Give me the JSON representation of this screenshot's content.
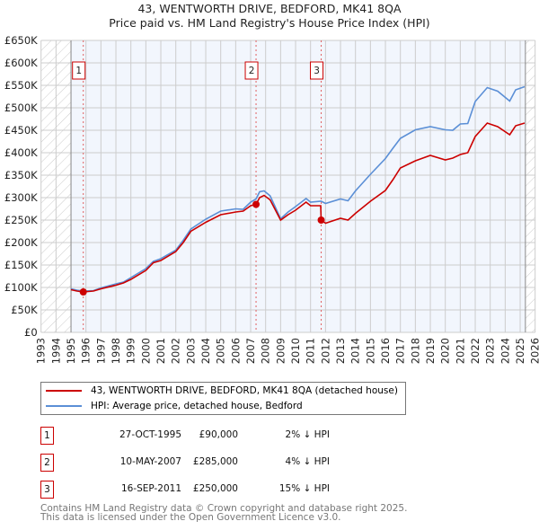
{
  "title": "43, WENTWORTH DRIVE, BEDFORD, MK41 8QA",
  "subtitle": "Price paid vs. HM Land Registry's House Price Index (HPI)",
  "chart_data": {
    "type": "line",
    "ylim": [
      0,
      650000
    ],
    "xlim": [
      1993,
      2026
    ],
    "yticks": [
      "£0",
      "£50K",
      "£100K",
      "£150K",
      "£200K",
      "£250K",
      "£300K",
      "£350K",
      "£400K",
      "£450K",
      "£500K",
      "£550K",
      "£600K",
      "£650K"
    ],
    "xticks": [
      "1993",
      "1994",
      "1995",
      "1996",
      "1997",
      "1998",
      "1999",
      "2000",
      "2001",
      "2002",
      "2003",
      "2004",
      "2005",
      "2006",
      "2007",
      "2008",
      "2009",
      "2010",
      "2011",
      "2012",
      "2013",
      "2014",
      "2015",
      "2016",
      "2017",
      "2018",
      "2019",
      "2020",
      "2021",
      "2022",
      "2023",
      "2024",
      "2025",
      "2026"
    ],
    "hatched_before": 1995.0,
    "hatched_after": 2025.35,
    "series": [
      {
        "name": "43, WENTWORTH DRIVE, BEDFORD, MK41 8QA (detached house)",
        "color": "#cc0000",
        "x": [
          1995.0,
          1995.4,
          1995.82,
          1996.5,
          1997,
          1998,
          1998.5,
          1999,
          2000,
          2000.5,
          2001,
          2002,
          2002.5,
          2003,
          2004,
          2005,
          2006,
          2006.5,
          2007,
          2007.36,
          2007.6,
          2007.9,
          2008.3,
          2009,
          2009.5,
          2010,
          2010.7,
          2011,
          2011.68,
          2011.71,
          2012,
          2013,
          2013.5,
          2014,
          2015,
          2016,
          2016.5,
          2017,
          2018,
          2019,
          2020,
          2020.5,
          2021,
          2021.5,
          2022,
          2022.8,
          2023.5,
          2024.3,
          2024.7,
          2025.3
        ],
        "y": [
          95000,
          92000,
          90000,
          92000,
          97000,
          105000,
          110000,
          118000,
          138000,
          155000,
          160000,
          180000,
          200000,
          225000,
          245000,
          262000,
          268000,
          270000,
          282000,
          285000,
          300000,
          305000,
          295000,
          250000,
          262000,
          272000,
          290000,
          282000,
          282000,
          250000,
          243000,
          254000,
          250000,
          265000,
          292000,
          316000,
          340000,
          366000,
          382000,
          394000,
          384000,
          388000,
          396000,
          400000,
          436000,
          466000,
          458000,
          440000,
          460000,
          466000
        ]
      },
      {
        "name": "HPI: Average price, detached house, Bedford",
        "color": "#5b8fd6",
        "x": [
          1995.0,
          1995.4,
          1995.82,
          1996.5,
          1997,
          1998,
          1998.5,
          1999,
          2000,
          2000.5,
          2001,
          2002,
          2002.5,
          2003,
          2004,
          2005,
          2006,
          2006.5,
          2007,
          2007.36,
          2007.6,
          2007.9,
          2008.3,
          2009,
          2009.5,
          2010,
          2010.7,
          2011,
          2011.7,
          2012,
          2013,
          2013.5,
          2014,
          2015,
          2016,
          2016.5,
          2017,
          2018,
          2019,
          2020,
          2020.5,
          2021,
          2021.5,
          2022,
          2022.8,
          2023.5,
          2024.3,
          2024.7,
          2025.3
        ],
        "y": [
          97000,
          94000,
          92000,
          93000,
          99000,
          108000,
          112000,
          122000,
          142000,
          158000,
          164000,
          183000,
          205000,
          230000,
          252000,
          270000,
          275000,
          274000,
          290000,
          297000,
          313000,
          315000,
          304000,
          253000,
          268000,
          280000,
          298000,
          290000,
          292000,
          287000,
          297000,
          293000,
          315000,
          352000,
          387000,
          410000,
          432000,
          451000,
          458000,
          451000,
          450000,
          464000,
          465000,
          514000,
          545000,
          537000,
          515000,
          540000,
          547000
        ]
      }
    ],
    "sales": [
      {
        "label": "1",
        "x": 1995.82,
        "y": 90000
      },
      {
        "label": "2",
        "x": 2007.36,
        "y": 285000
      },
      {
        "label": "3",
        "x": 2011.71,
        "y": 250000
      }
    ]
  },
  "legend": {
    "property": "43, WENTWORTH DRIVE, BEDFORD, MK41 8QA (detached house)",
    "hpi": "HPI: Average price, detached house, Bedford"
  },
  "transactions": [
    {
      "num": "1",
      "date": "27-OCT-1995",
      "price": "£90,000",
      "hpi": "2% ↓ HPI"
    },
    {
      "num": "2",
      "date": "10-MAY-2007",
      "price": "£285,000",
      "hpi": "4% ↓ HPI"
    },
    {
      "num": "3",
      "date": "16-SEP-2011",
      "price": "£250,000",
      "hpi": "15% ↓ HPI"
    }
  ],
  "footer": {
    "line1": "Contains HM Land Registry data © Crown copyright and database right 2025.",
    "line2": "This data is licensed under the Open Government Licence v3.0."
  }
}
